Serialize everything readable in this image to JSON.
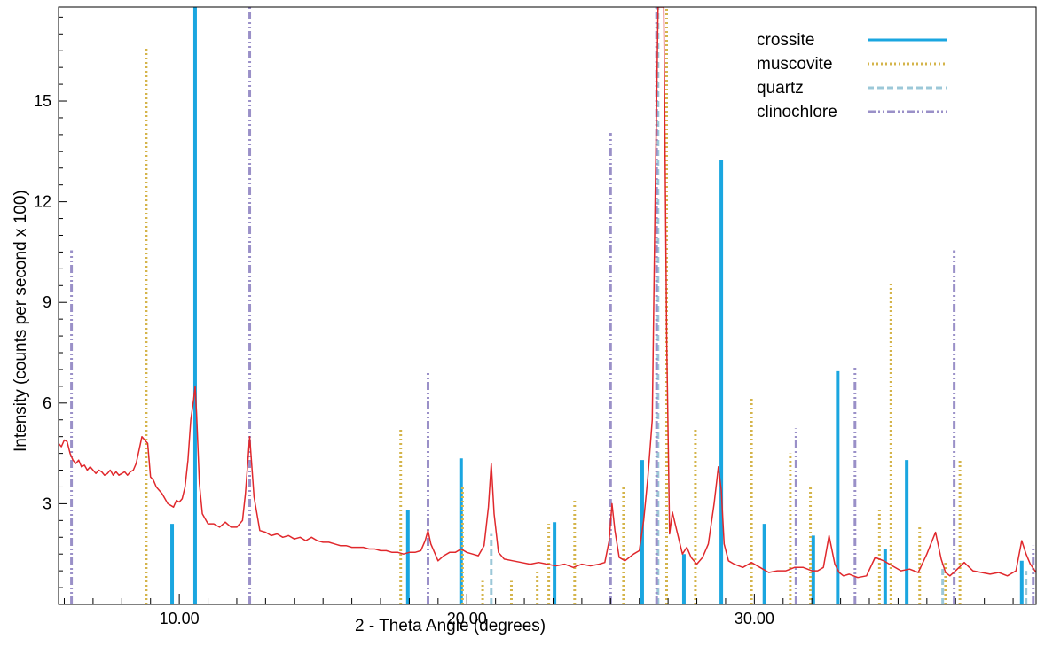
{
  "chart_data": {
    "type": "line",
    "xlabel": "2 - Theta  Angle  (degrees)",
    "ylabel": "Intensity   (counts per second x 100)",
    "xlim": [
      5.8,
      39.8
    ],
    "ylim": [
      0,
      17.8
    ],
    "x_ticks": [
      10.0,
      20.0,
      30.0
    ],
    "x_tick_labels": [
      "10.00",
      "20.00",
      "30.00"
    ],
    "y_ticks": [
      3,
      6,
      9,
      12,
      15
    ],
    "y_tick_labels": [
      "3",
      "6",
      "9",
      "12",
      "15"
    ],
    "legend_position": "top-right",
    "series": [
      {
        "name": "crossite",
        "color": "#1aa6e0",
        "style": "solid",
        "x": [
          9.75,
          10.55,
          17.95,
          19.8,
          23.05,
          26.1,
          27.55,
          28.85,
          30.35,
          32.05,
          32.9,
          34.55,
          35.3,
          39.3
        ],
        "values": [
          2.4,
          17.8,
          2.8,
          4.35,
          2.45,
          4.3,
          1.5,
          13.25,
          2.4,
          2.05,
          6.95,
          1.65,
          4.3,
          1.3
        ]
      },
      {
        "name": "muscovite",
        "color": "#d4b44a",
        "style": "dotted",
        "x": [
          8.85,
          17.7,
          19.85,
          20.55,
          21.55,
          22.45,
          22.85,
          23.75,
          25.45,
          26.95,
          27.95,
          29.9,
          31.25,
          31.95,
          34.35,
          34.75,
          35.75,
          36.65,
          37.15
        ],
        "values": [
          16.6,
          5.25,
          3.5,
          0.7,
          0.7,
          1.0,
          2.4,
          3.1,
          3.5,
          17.8,
          5.25,
          6.2,
          4.5,
          3.5,
          2.8,
          9.6,
          2.3,
          1.3,
          4.35
        ]
      },
      {
        "name": "quartz",
        "color": "#9cc8d8",
        "style": "dashed",
        "x": [
          20.85,
          26.65,
          36.55,
          39.45
        ],
        "values": [
          2.1,
          17.8,
          1.2,
          1.0
        ]
      },
      {
        "name": "clinochlore",
        "color": "#9a90c8",
        "style": "dashdot",
        "x": [
          6.25,
          12.45,
          18.65,
          25.0,
          26.6,
          31.45,
          33.5,
          36.95,
          39.7
        ],
        "values": [
          10.55,
          17.8,
          7.0,
          14.05,
          17.8,
          5.25,
          7.05,
          10.55,
          1.75
        ]
      },
      {
        "name": "",
        "color": "#e0282c",
        "style": "solid",
        "x": [
          5.8,
          5.9,
          6.0,
          6.1,
          6.2,
          6.3,
          6.4,
          6.5,
          6.6,
          6.7,
          6.8,
          6.9,
          7.0,
          7.1,
          7.2,
          7.3,
          7.4,
          7.5,
          7.6,
          7.7,
          7.8,
          7.9,
          8.0,
          8.1,
          8.2,
          8.3,
          8.4,
          8.5,
          8.6,
          8.7,
          8.8,
          8.9,
          9.0,
          9.1,
          9.2,
          9.4,
          9.6,
          9.8,
          9.9,
          10.0,
          10.1,
          10.2,
          10.3,
          10.4,
          10.5,
          10.55,
          10.6,
          10.7,
          10.8,
          11.0,
          11.2,
          11.4,
          11.6,
          11.8,
          12.0,
          12.2,
          12.3,
          12.45,
          12.6,
          12.8,
          13.0,
          13.2,
          13.4,
          13.6,
          13.8,
          14.0,
          14.2,
          14.4,
          14.6,
          14.8,
          15.0,
          15.2,
          15.4,
          15.6,
          15.8,
          16.0,
          16.2,
          16.4,
          16.6,
          16.8,
          17.0,
          17.2,
          17.4,
          17.6,
          17.8,
          18.0,
          18.2,
          18.4,
          18.55,
          18.65,
          18.75,
          18.9,
          19.0,
          19.2,
          19.4,
          19.6,
          19.8,
          20.0,
          20.2,
          20.4,
          20.6,
          20.75,
          20.85,
          20.95,
          21.1,
          21.3,
          21.6,
          21.9,
          22.2,
          22.5,
          22.8,
          23.1,
          23.4,
          23.7,
          24.0,
          24.3,
          24.6,
          24.8,
          24.95,
          25.05,
          25.15,
          25.3,
          25.5,
          25.8,
          26.0,
          26.15,
          26.3,
          26.45,
          26.55,
          26.65,
          26.75,
          26.85,
          26.95,
          27.05,
          27.15,
          27.3,
          27.5,
          27.65,
          27.8,
          28.0,
          28.2,
          28.4,
          28.6,
          28.75,
          28.85,
          28.95,
          29.1,
          29.3,
          29.6,
          29.9,
          30.2,
          30.5,
          30.8,
          31.1,
          31.4,
          31.7,
          32.0,
          32.2,
          32.4,
          32.6,
          32.8,
          32.95,
          33.1,
          33.3,
          33.6,
          33.9,
          34.2,
          34.5,
          34.8,
          35.1,
          35.4,
          35.7,
          36.0,
          36.3,
          36.5,
          36.65,
          36.8,
          37.0,
          37.3,
          37.6,
          37.9,
          38.2,
          38.5,
          38.8,
          39.1,
          39.3,
          39.45,
          39.6,
          39.8
        ],
        "values": [
          4.8,
          4.7,
          4.9,
          4.85,
          4.5,
          4.3,
          4.2,
          4.3,
          4.1,
          4.15,
          4.0,
          4.1,
          4.0,
          3.9,
          4.0,
          3.95,
          3.85,
          3.9,
          4.0,
          3.85,
          3.95,
          3.85,
          3.9,
          3.95,
          3.85,
          3.95,
          4.0,
          4.2,
          4.6,
          5.0,
          4.9,
          4.8,
          3.8,
          3.7,
          3.5,
          3.3,
          3.0,
          2.9,
          3.1,
          3.05,
          3.15,
          3.5,
          4.3,
          5.5,
          6.1,
          6.5,
          5.7,
          3.6,
          2.7,
          2.4,
          2.4,
          2.3,
          2.45,
          2.3,
          2.3,
          2.5,
          3.3,
          5.0,
          3.2,
          2.2,
          2.15,
          2.05,
          2.1,
          2.0,
          2.05,
          1.95,
          2.0,
          1.9,
          2.0,
          1.9,
          1.85,
          1.85,
          1.8,
          1.75,
          1.75,
          1.7,
          1.7,
          1.7,
          1.65,
          1.65,
          1.6,
          1.6,
          1.55,
          1.55,
          1.5,
          1.55,
          1.55,
          1.6,
          1.9,
          2.2,
          1.8,
          1.5,
          1.3,
          1.45,
          1.55,
          1.55,
          1.65,
          1.55,
          1.5,
          1.45,
          1.75,
          2.9,
          4.2,
          2.7,
          1.55,
          1.35,
          1.3,
          1.25,
          1.2,
          1.25,
          1.2,
          1.15,
          1.2,
          1.1,
          1.2,
          1.15,
          1.2,
          1.25,
          1.9,
          3.0,
          2.2,
          1.4,
          1.3,
          1.5,
          1.6,
          2.5,
          3.8,
          5.5,
          12.0,
          17.8,
          17.8,
          17.8,
          8.0,
          2.1,
          2.75,
          2.2,
          1.5,
          1.7,
          1.4,
          1.2,
          1.4,
          1.8,
          3.0,
          4.1,
          3.4,
          1.8,
          1.3,
          1.2,
          1.1,
          1.25,
          1.1,
          0.95,
          1.0,
          1.0,
          1.1,
          1.1,
          1.0,
          1.0,
          1.1,
          2.05,
          1.2,
          0.95,
          0.85,
          0.9,
          0.8,
          0.85,
          1.4,
          1.3,
          1.15,
          1.0,
          1.05,
          0.95,
          1.5,
          2.15,
          1.35,
          0.95,
          0.85,
          1.0,
          1.25,
          1.0,
          0.95,
          0.9,
          0.95,
          0.85,
          1.0,
          1.9,
          1.5,
          1.2,
          0.95
        ]
      }
    ]
  }
}
